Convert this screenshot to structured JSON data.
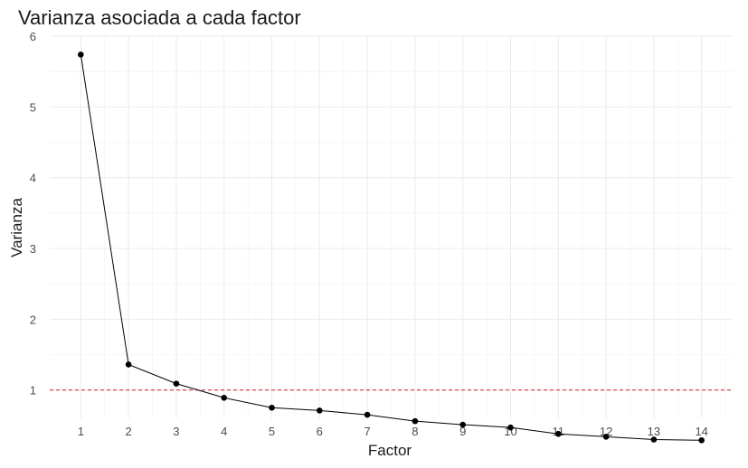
{
  "chart_data": {
    "type": "line",
    "title": "Varianza asociada a cada factor",
    "xlabel": "Factor",
    "ylabel": "Varianza",
    "x": [
      1,
      2,
      3,
      4,
      5,
      6,
      7,
      8,
      9,
      10,
      11,
      12,
      13,
      14
    ],
    "series": [
      {
        "values": [
          5.74,
          1.36,
          1.09,
          0.89,
          0.75,
          0.71,
          0.65,
          0.56,
          0.51,
          0.47,
          0.38,
          0.34,
          0.3,
          0.29
        ],
        "color": "#000000",
        "markers": true
      }
    ],
    "reference_line": {
      "y": 1,
      "color": "#d6334a",
      "style": "dashed"
    },
    "xlim": [
      0.35,
      14.65
    ],
    "ylim": [
      0.6,
      6
    ],
    "x_ticks": [
      1,
      2,
      3,
      4,
      5,
      6,
      7,
      8,
      9,
      10,
      11,
      12,
      13,
      14
    ],
    "y_ticks": [
      1,
      2,
      3,
      4,
      5,
      6
    ],
    "grid": true,
    "legend": "none"
  }
}
